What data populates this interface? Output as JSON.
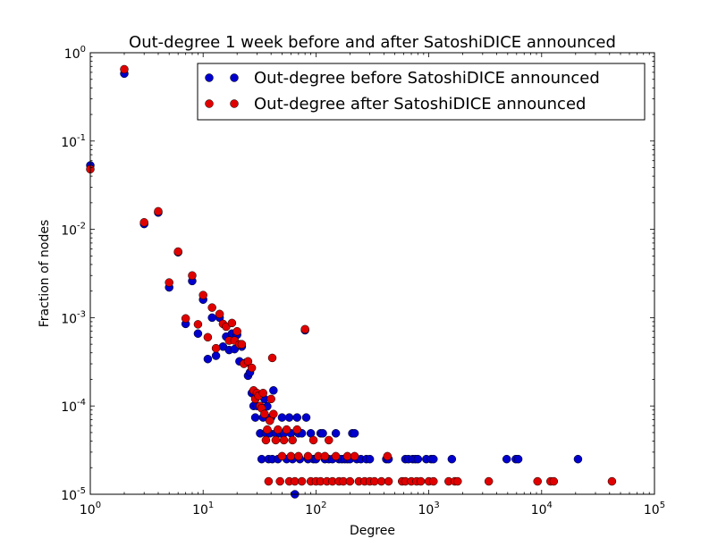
{
  "chart_data": {
    "type": "scatter",
    "title": "Out-degree 1 week before and after SatoshiDICE announced",
    "xlabel": "Degree",
    "ylabel": "Fraction of nodes",
    "xscale": "log",
    "yscale": "log",
    "xlim": [
      1,
      100000
    ],
    "ylim": [
      1e-05,
      1
    ],
    "x_ticks": [
      {
        "base": "10",
        "exp": "0"
      },
      {
        "base": "10",
        "exp": "1"
      },
      {
        "base": "10",
        "exp": "2"
      },
      {
        "base": "10",
        "exp": "3"
      },
      {
        "base": "10",
        "exp": "4"
      },
      {
        "base": "10",
        "exp": "5"
      }
    ],
    "y_ticks": [
      {
        "base": "10",
        "exp": "-5"
      },
      {
        "base": "10",
        "exp": "-4"
      },
      {
        "base": "10",
        "exp": "-3"
      },
      {
        "base": "10",
        "exp": "-2"
      },
      {
        "base": "10",
        "exp": "-1"
      },
      {
        "base": "10",
        "exp": "0"
      }
    ],
    "grid": false,
    "legend_position": "top-right",
    "series": [
      {
        "name": "Out-degree before SatoshiDICE announced",
        "color": "#0000cc",
        "points": [
          [
            1,
            0.053
          ],
          [
            2,
            0.58
          ],
          [
            3,
            0.0115
          ],
          [
            4,
            0.0155
          ],
          [
            5,
            0.0022
          ],
          [
            6,
            0.0055
          ],
          [
            7,
            0.00085
          ],
          [
            8,
            0.0026
          ],
          [
            9,
            0.00066
          ],
          [
            10,
            0.0016
          ],
          [
            11,
            0.00034
          ],
          [
            12,
            0.001
          ],
          [
            13,
            0.00037
          ],
          [
            14,
            0.001
          ],
          [
            15,
            0.00047
          ],
          [
            16,
            0.00061
          ],
          [
            17,
            0.00043
          ],
          [
            18,
            0.00066
          ],
          [
            19,
            0.00044
          ],
          [
            20,
            0.00064
          ],
          [
            21,
            0.00032
          ],
          [
            22,
            0.00047
          ],
          [
            24,
            0.00031
          ],
          [
            25,
            0.00022
          ],
          [
            26,
            0.00024
          ],
          [
            27,
            0.00014
          ],
          [
            28,
            0.0001
          ],
          [
            29,
            7.4e-05
          ],
          [
            30,
            0.0001
          ],
          [
            31,
            0.00013
          ],
          [
            32,
            4.9e-05
          ],
          [
            33,
            2.5e-05
          ],
          [
            34,
            7.4e-05
          ],
          [
            35,
            0.00012
          ],
          [
            36,
            4.9e-05
          ],
          [
            37,
            9.9e-05
          ],
          [
            38,
            2.5e-05
          ],
          [
            39,
            4.9e-05
          ],
          [
            40,
            7.4e-05
          ],
          [
            41,
            2.5e-05
          ],
          [
            42,
            0.00015
          ],
          [
            44,
            4.9e-05
          ],
          [
            46,
            2.5e-05
          ],
          [
            48,
            4.9e-05
          ],
          [
            50,
            7.4e-05
          ],
          [
            52,
            4.9e-05
          ],
          [
            55,
            2.5e-05
          ],
          [
            58,
            7.4e-05
          ],
          [
            60,
            4.9e-05
          ],
          [
            62,
            2.5e-05
          ],
          [
            65,
            1e-05
          ],
          [
            68,
            7.4e-05
          ],
          [
            70,
            4.9e-05
          ],
          [
            72,
            2.5e-05
          ],
          [
            75,
            4.9e-05
          ],
          [
            80,
            0.00072
          ],
          [
            82,
            7.4e-05
          ],
          [
            85,
            2.5e-05
          ],
          [
            90,
            4.9e-05
          ],
          [
            95,
            2.5e-05
          ],
          [
            100,
            2.5e-05
          ],
          [
            110,
            4.9e-05
          ],
          [
            115,
            4.9e-05
          ],
          [
            120,
            2.5e-05
          ],
          [
            130,
            2.5e-05
          ],
          [
            140,
            2.5e-05
          ],
          [
            150,
            4.9e-05
          ],
          [
            160,
            2.5e-05
          ],
          [
            170,
            2.5e-05
          ],
          [
            180,
            2.5e-05
          ],
          [
            190,
            2.5e-05
          ],
          [
            200,
            2.5e-05
          ],
          [
            210,
            4.9e-05
          ],
          [
            220,
            4.9e-05
          ],
          [
            230,
            2.5e-05
          ],
          [
            250,
            2.5e-05
          ],
          [
            280,
            2.5e-05
          ],
          [
            300,
            2.5e-05
          ],
          [
            420,
            2.5e-05
          ],
          [
            440,
            2.5e-05
          ],
          [
            620,
            2.5e-05
          ],
          [
            660,
            2.5e-05
          ],
          [
            720,
            2.5e-05
          ],
          [
            760,
            2.5e-05
          ],
          [
            800,
            2.5e-05
          ],
          [
            950,
            2.5e-05
          ],
          [
            1050,
            2.5e-05
          ],
          [
            1100,
            2.5e-05
          ],
          [
            1600,
            2.5e-05
          ],
          [
            4900,
            2.5e-05
          ],
          [
            5900,
            2.5e-05
          ],
          [
            6200,
            2.5e-05
          ],
          [
            21000,
            2.5e-05
          ]
        ]
      },
      {
        "name": "Out-degree after SatoshiDICE announced",
        "color": "#e00000",
        "points": [
          [
            1,
            0.048
          ],
          [
            2,
            0.65
          ],
          [
            3,
            0.012
          ],
          [
            4,
            0.016
          ],
          [
            5,
            0.0025
          ],
          [
            6,
            0.0056
          ],
          [
            7,
            0.00098
          ],
          [
            8,
            0.003
          ],
          [
            9,
            0.00084
          ],
          [
            10,
            0.0018
          ],
          [
            11,
            0.0006
          ],
          [
            12,
            0.0013
          ],
          [
            13,
            0.00045
          ],
          [
            14,
            0.0011
          ],
          [
            15,
            0.00085
          ],
          [
            16,
            0.00079
          ],
          [
            17,
            0.00055
          ],
          [
            18,
            0.00087
          ],
          [
            19,
            0.00055
          ],
          [
            20,
            0.0007
          ],
          [
            21,
            0.0005
          ],
          [
            22,
            0.0005
          ],
          [
            23,
            0.0003
          ],
          [
            25,
            0.00032
          ],
          [
            27,
            0.00027
          ],
          [
            28,
            0.00015
          ],
          [
            29,
            0.00012
          ],
          [
            30,
            0.00014
          ],
          [
            31,
            0.00013
          ],
          [
            32,
            0.0001
          ],
          [
            33,
            9.4e-05
          ],
          [
            34,
            0.00014
          ],
          [
            35,
            8.1e-05
          ],
          [
            36,
            4.1e-05
          ],
          [
            37,
            5.4e-05
          ],
          [
            38,
            1.4e-05
          ],
          [
            39,
            6.8e-05
          ],
          [
            40,
            0.00012
          ],
          [
            41,
            0.00035
          ],
          [
            42,
            8.1e-05
          ],
          [
            44,
            4.1e-05
          ],
          [
            46,
            5.4e-05
          ],
          [
            48,
            1.4e-05
          ],
          [
            50,
            2.7e-05
          ],
          [
            52,
            4.1e-05
          ],
          [
            55,
            5.4e-05
          ],
          [
            58,
            1.4e-05
          ],
          [
            60,
            2.7e-05
          ],
          [
            62,
            4.1e-05
          ],
          [
            65,
            1.4e-05
          ],
          [
            68,
            5.4e-05
          ],
          [
            70,
            2.7e-05
          ],
          [
            75,
            1.4e-05
          ],
          [
            80,
            0.00074
          ],
          [
            85,
            2.7e-05
          ],
          [
            90,
            1.4e-05
          ],
          [
            95,
            4.1e-05
          ],
          [
            100,
            1.4e-05
          ],
          [
            105,
            2.7e-05
          ],
          [
            110,
            1.4e-05
          ],
          [
            120,
            2.7e-05
          ],
          [
            125,
            1.4e-05
          ],
          [
            130,
            4.1e-05
          ],
          [
            140,
            1.4e-05
          ],
          [
            150,
            2.7e-05
          ],
          [
            160,
            1.4e-05
          ],
          [
            175,
            1.4e-05
          ],
          [
            190,
            2.7e-05
          ],
          [
            200,
            1.4e-05
          ],
          [
            220,
            2.7e-05
          ],
          [
            240,
            1.4e-05
          ],
          [
            270,
            1.4e-05
          ],
          [
            300,
            1.4e-05
          ],
          [
            330,
            1.4e-05
          ],
          [
            380,
            1.4e-05
          ],
          [
            430,
            2.7e-05
          ],
          [
            440,
            1.4e-05
          ],
          [
            580,
            1.4e-05
          ],
          [
            620,
            1.4e-05
          ],
          [
            700,
            1.4e-05
          ],
          [
            780,
            1.4e-05
          ],
          [
            850,
            1.4e-05
          ],
          [
            1000,
            1.4e-05
          ],
          [
            1100,
            1.4e-05
          ],
          [
            1500,
            1.4e-05
          ],
          [
            1700,
            1.4e-05
          ],
          [
            1800,
            1.4e-05
          ],
          [
            3400,
            1.4e-05
          ],
          [
            9200,
            1.4e-05
          ],
          [
            12000,
            1.4e-05
          ],
          [
            12800,
            1.4e-05
          ],
          [
            42000,
            1.4e-05
          ]
        ]
      }
    ]
  }
}
